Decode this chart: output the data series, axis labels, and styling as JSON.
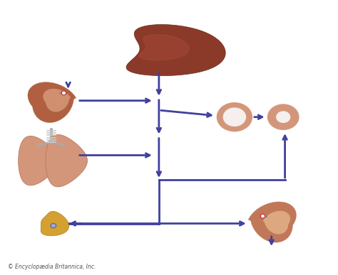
{
  "bg_color": "#ffffff",
  "arrow_color": "#4040a0",
  "arrow_lw": 2.0,
  "copyright_text": "© Encyclopædia Britannica, Inc."
}
